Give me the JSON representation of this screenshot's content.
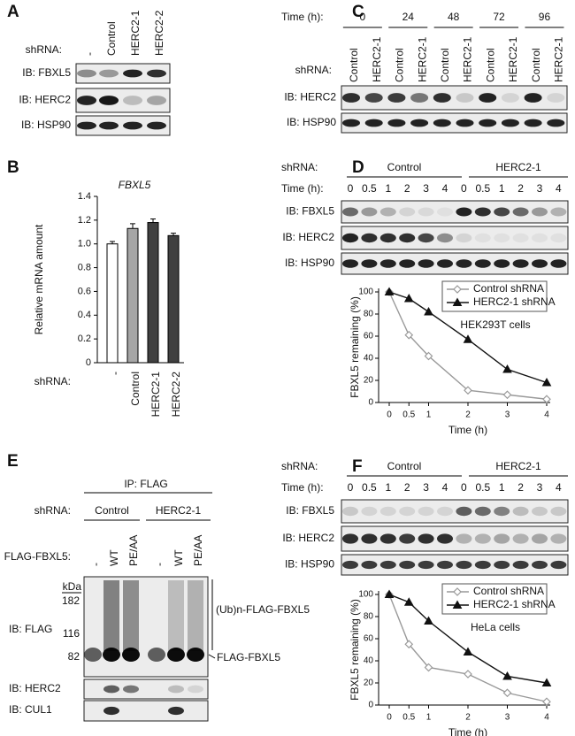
{
  "panels": {
    "A": {
      "label": "A",
      "shrna_label": "shRNA:",
      "lanes": [
        "-",
        "Control",
        "HERC2-1",
        "HERC2-2"
      ],
      "blots": [
        "IB: FBXL5",
        "IB: HERC2",
        "IB: HSP90"
      ]
    },
    "B": {
      "label": "B",
      "shrna_label": "shRNA:"
    },
    "C": {
      "label": "C",
      "time_label": "Time (h):",
      "times": [
        "0",
        "24",
        "48",
        "72",
        "96"
      ],
      "shrna_label": "shRNA:",
      "lanes": [
        "Control",
        "HERC2-1",
        "Control",
        "HERC2-1",
        "Control",
        "HERC2-1",
        "Control",
        "HERC2-1",
        "Control",
        "HERC2-1"
      ],
      "blots": [
        "IB: HERC2",
        "IB: HSP90"
      ]
    },
    "D": {
      "label": "D",
      "shrna_label": "shRNA:",
      "groups": [
        "Control",
        "HERC2-1"
      ],
      "time_label": "Time (h):",
      "lanes": [
        "0",
        "0.5",
        "1",
        "2",
        "3",
        "4",
        "0",
        "0.5",
        "1",
        "2",
        "3",
        "4"
      ],
      "blots": [
        "IB: FBXL5",
        "IB: HERC2",
        "IB: HSP90"
      ]
    },
    "E": {
      "label": "E",
      "ip_label": "IP: FLAG",
      "shrna_label": "shRNA:",
      "groups": [
        "Control",
        "HERC2-1"
      ],
      "flag_label": "FLAG-FBXL5:",
      "lanes": [
        "-",
        "WT",
        "PE/AA",
        "-",
        "WT",
        "PE/AA"
      ],
      "kda_label": "kDa",
      "markers": [
        "182",
        "116",
        "82"
      ],
      "blots": [
        "IB: FLAG",
        "IB: HERC2",
        "IB: CUL1"
      ],
      "ub_label": "(Ub)n-FLAG-FBXL5",
      "band_label": "FLAG-FBXL5"
    },
    "F": {
      "label": "F",
      "shrna_label": "shRNA:",
      "groups": [
        "Control",
        "HERC2-1"
      ],
      "time_label": "Time (h):",
      "lanes": [
        "0",
        "0.5",
        "1",
        "2",
        "3",
        "4",
        "0",
        "0.5",
        "1",
        "2",
        "3",
        "4"
      ],
      "blots": [
        "IB: FBXL5",
        "IB: HERC2",
        "IB: HSP90"
      ]
    }
  },
  "chart_data": [
    {
      "type": "bar",
      "title": "FBXL5",
      "y_label": "Relative mRNA amount",
      "categories": [
        "-",
        "Control",
        "HERC2-1",
        "HERC2-2"
      ],
      "values": [
        1.0,
        1.13,
        1.18,
        1.07
      ],
      "errors": [
        0.02,
        0.04,
        0.03,
        0.02
      ],
      "colors": [
        "#ffffff",
        "#a6a6a6",
        "#404040",
        "#404040"
      ],
      "ylim": [
        0,
        1.4
      ],
      "yticks": [
        0,
        0.2,
        0.4,
        0.6,
        0.8,
        {
          "value": 1,
          "label": "1.0"
        },
        1.2,
        1.4
      ]
    },
    {
      "type": "line",
      "y_label": "FBXL5 remaining (%)",
      "x_label": "Time (h)",
      "annotation": "HEK293T cells",
      "x": [
        0,
        0.5,
        1,
        2,
        3,
        4
      ],
      "xlim": [
        0,
        4
      ],
      "xticks": [
        0,
        0.5,
        1,
        2,
        3,
        4
      ],
      "ylim": [
        0,
        100
      ],
      "yticks": [
        0,
        20,
        40,
        60,
        80,
        100
      ],
      "series": [
        {
          "name": "Control shRNA",
          "color": "#999999",
          "marker": "diamond",
          "values": [
            100,
            61,
            42,
            11,
            7,
            3
          ]
        },
        {
          "name": "HERC2-1 shRNA",
          "color": "#111111",
          "marker": "triangle",
          "values": [
            100,
            94,
            82,
            57,
            30,
            18
          ]
        }
      ]
    },
    {
      "type": "line",
      "y_label": "FBXL5 remaining (%)",
      "x_label": "Time (h)",
      "annotation": "HeLa cells",
      "x": [
        0,
        0.5,
        1,
        2,
        3,
        4
      ],
      "xlim": [
        0,
        4
      ],
      "xticks": [
        0,
        0.5,
        1,
        2,
        3,
        4
      ],
      "ylim": [
        0,
        100
      ],
      "yticks": [
        0,
        20,
        40,
        60,
        80,
        100
      ],
      "series": [
        {
          "name": "Control shRNA",
          "color": "#999999",
          "marker": "diamond",
          "values": [
            100,
            55,
            34,
            28,
            11,
            3
          ]
        },
        {
          "name": "HERC2-1 shRNA",
          "color": "#111111",
          "marker": "triangle",
          "values": [
            100,
            93,
            76,
            48,
            26,
            20
          ]
        }
      ]
    }
  ]
}
